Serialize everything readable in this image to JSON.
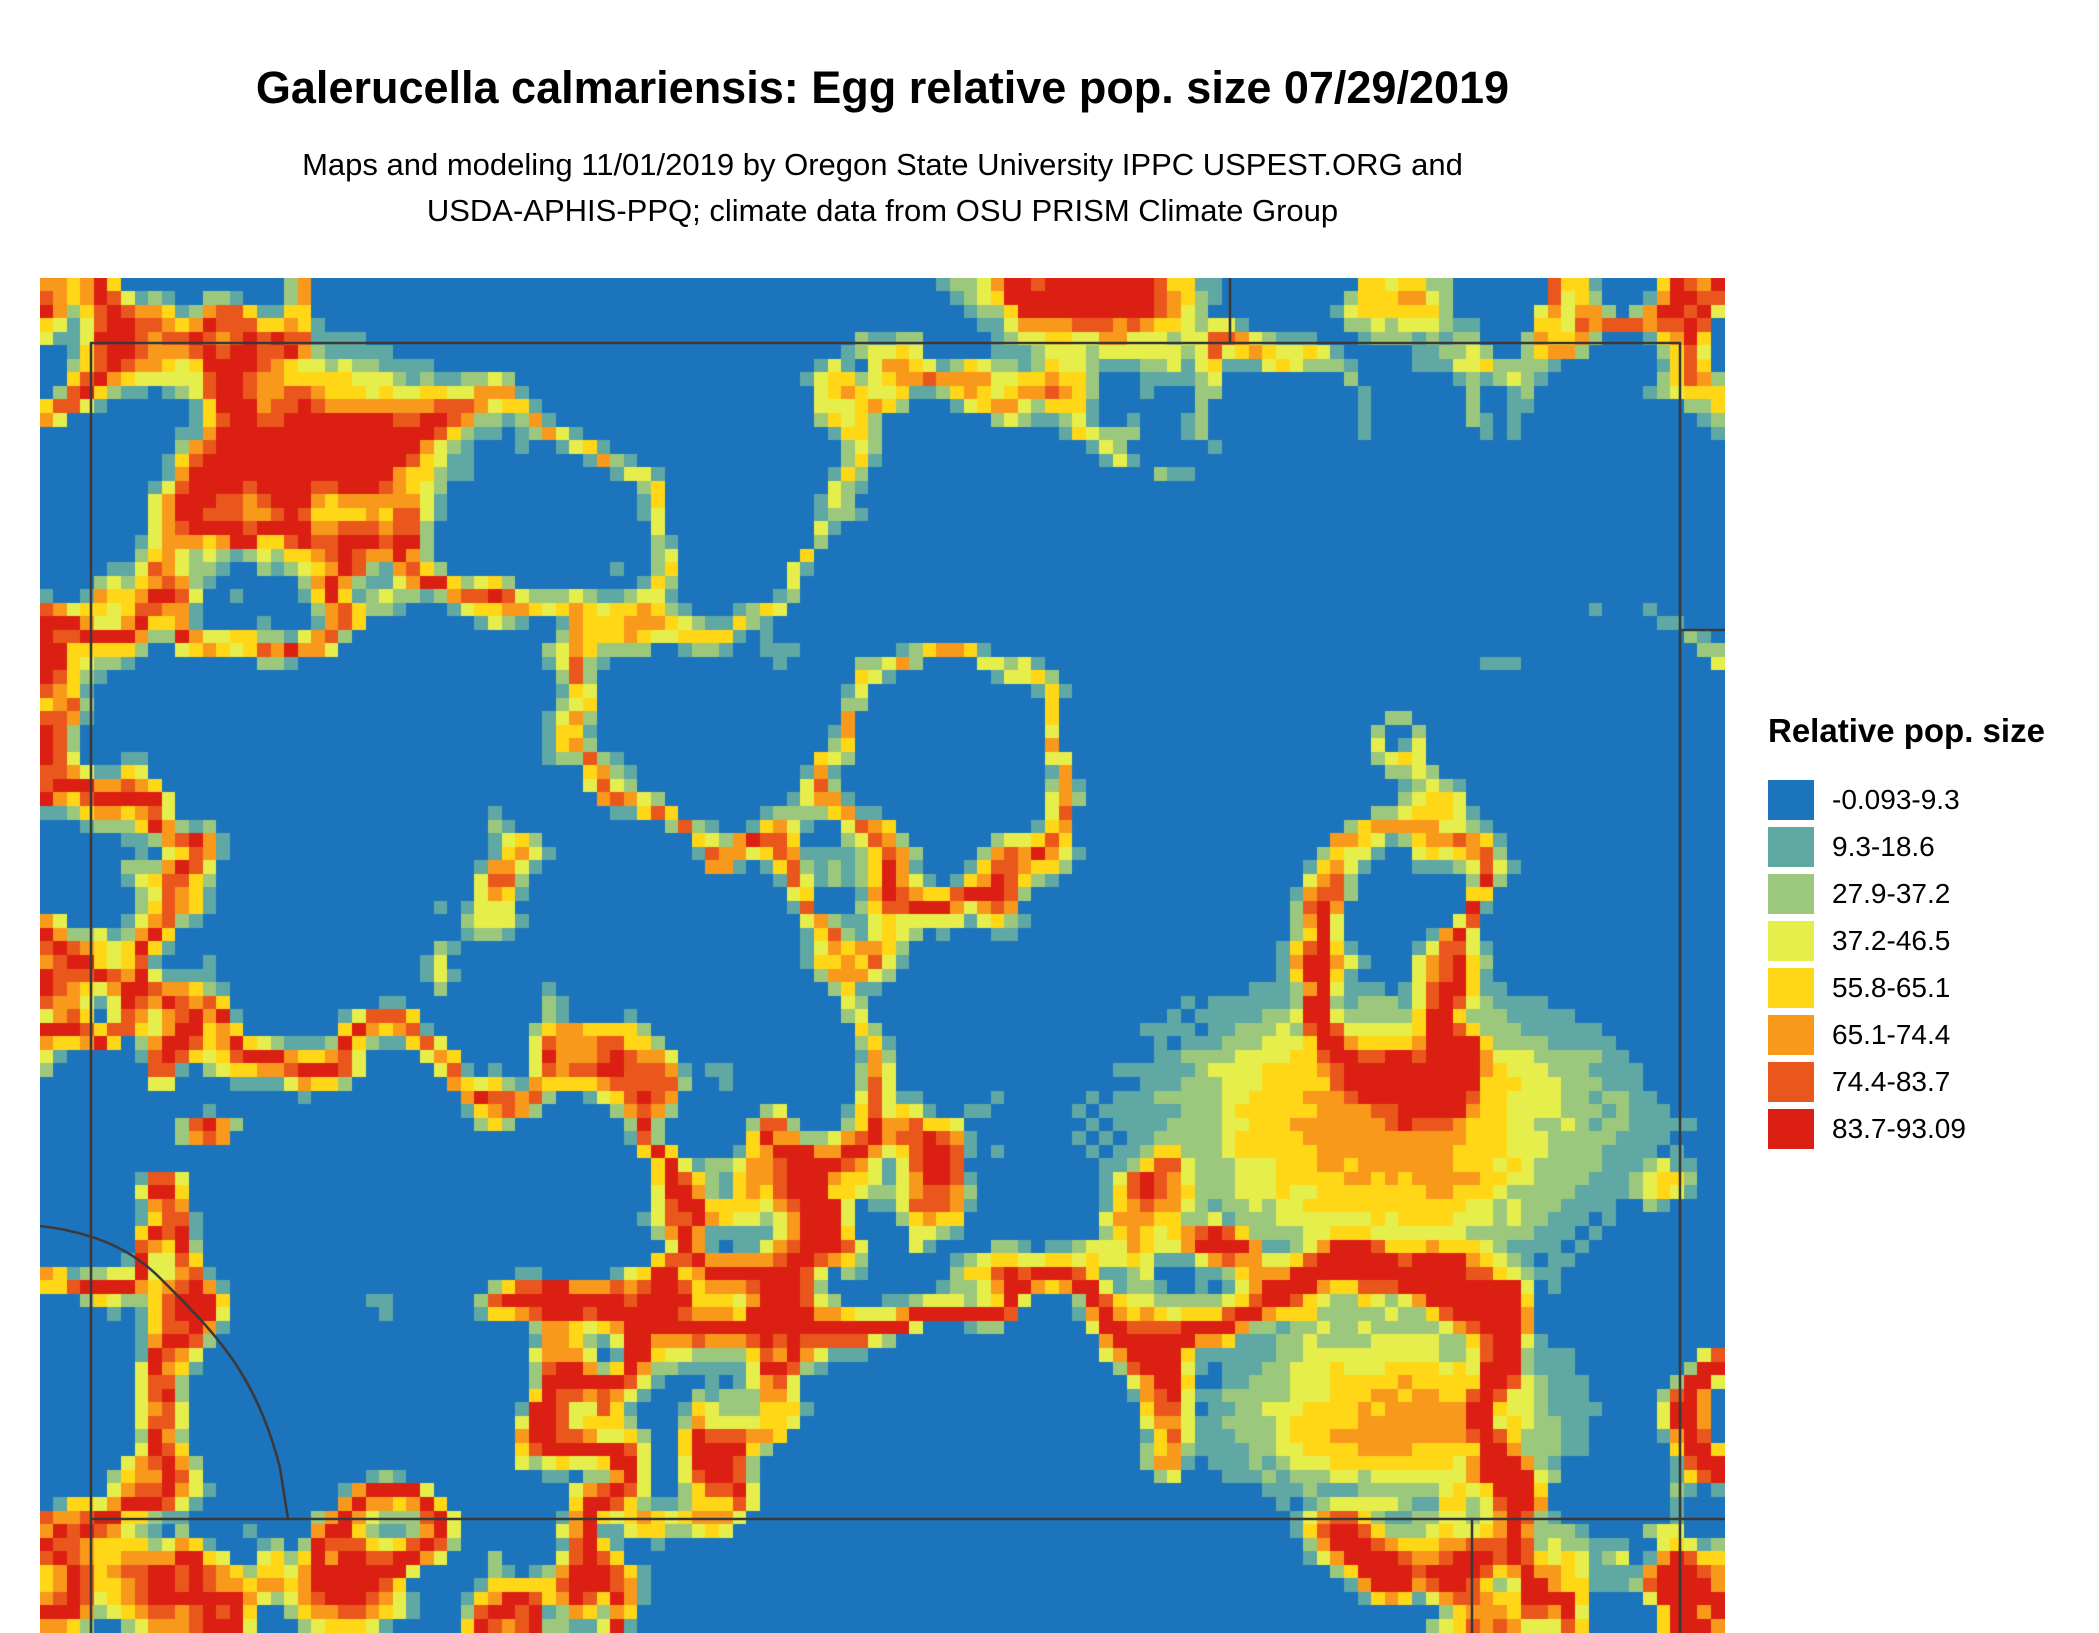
{
  "header": {
    "title": "Galerucella calmariensis: Egg relative pop. size 07/29/2019",
    "subtitle_line1": "Maps and modeling 11/01/2019 by Oregon State University IPPC USPEST.ORG and",
    "subtitle_line2": "USDA-APHIS-PPQ; climate data from OSU PRISM Climate Group"
  },
  "legend": {
    "title": "Relative pop. size",
    "entries": [
      {
        "label": "-0.093-9.3",
        "color": "#1c75bc"
      },
      {
        "label": "9.3-18.6",
        "color": "#5fa8a3"
      },
      {
        "label": "27.9-37.2",
        "color": "#9cc87e"
      },
      {
        "label": "37.2-46.5",
        "color": "#e6ee4c"
      },
      {
        "label": "55.8-65.1",
        "color": "#ffd717"
      },
      {
        "label": "65.1-74.4",
        "color": "#f8991c"
      },
      {
        "label": "74.4-83.7",
        "color": "#ea571d"
      },
      {
        "label": "83.7-93.09",
        "color": "#dc1f13"
      }
    ]
  },
  "map": {
    "background_color": "#1c75bc",
    "boundary_color": "#3a3a3a"
  }
}
